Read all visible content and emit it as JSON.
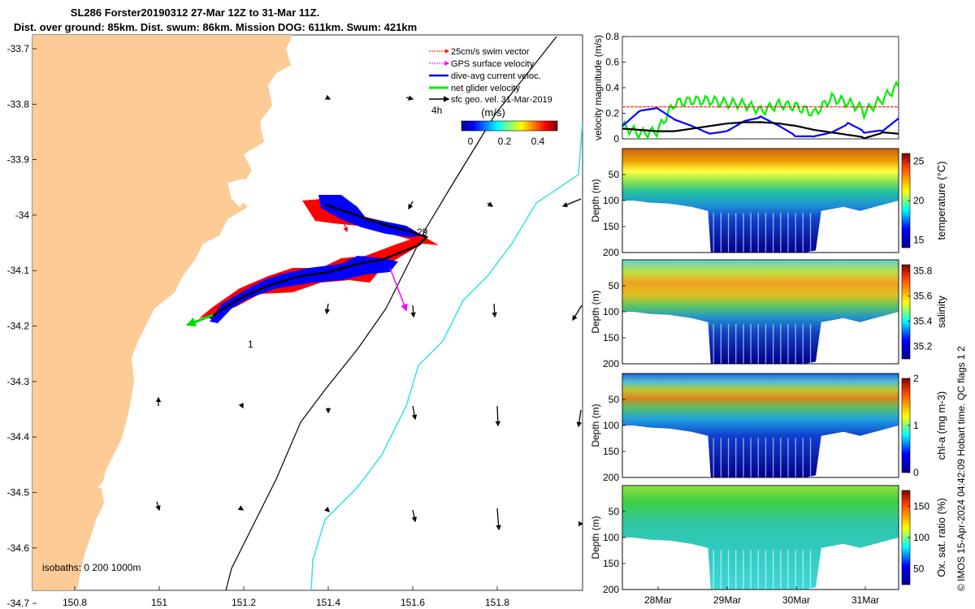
{
  "header": {
    "line1": "SL286 Forster20190312 27-Mar 12Z to 31-Mar 11Z.",
    "line2": "Dist. over ground: 85km. Dist. swum: 86km. Mission DOG: 611km. Swum: 421km"
  },
  "map": {
    "lat_ticks": [
      "-33.7",
      "-33.8",
      "-33.9",
      "-34",
      "-34.1",
      "-34.2",
      "-34.3",
      "-34.4",
      "-34.5",
      "-34.6",
      "-34.7"
    ],
    "lon_ticks": [
      "150.8",
      "151",
      "151.2",
      "151.4",
      "151.6",
      "151.8"
    ],
    "legend": [
      {
        "label": "25cm/s swim vector",
        "color": "#ff0000"
      },
      {
        "label": "GPS surface velocity",
        "color": "#ff00ff"
      },
      {
        "label": "dive-avg current veloc.",
        "color": "#0000ff"
      },
      {
        "label": "net glider velocity",
        "color": "#00ee00"
      },
      {
        "label": "sfc geo. vel. 31-Mar-2019",
        "color": "#000000"
      }
    ],
    "scale_label": "4h",
    "colorbar_title": "(m/s)",
    "colorbar_ticks": [
      "0",
      "0.2",
      "0.4"
    ],
    "isobaths_label": "isobaths: 0   200  1000m",
    "marker_start": "1",
    "marker_end": "29",
    "land_color": "#fdcb96",
    "isobath_200_color": "#000000",
    "isobath_1000_color": "#34e3e3"
  },
  "chart_data": [
    {
      "type": "line",
      "title": "",
      "ylabel": "velocity magnitude (m/s)",
      "ylim": [
        0,
        0.8
      ],
      "yticks": [
        "0",
        "0.2",
        "0.4",
        "0.6",
        "0.8"
      ],
      "x_days": [
        0,
        0.25,
        0.5,
        0.75,
        1,
        1.25,
        1.5,
        1.75,
        2,
        2.25,
        2.5,
        2.75,
        3,
        3.25,
        3.5,
        3.75,
        3.96
      ],
      "series": [
        {
          "name": "net glider velocity",
          "color": "#00ee00",
          "values": [
            0.1,
            0.04,
            0.06,
            0.28,
            0.3,
            0.3,
            0.28,
            0.27,
            0.22,
            0.27,
            0.25,
            0.2,
            0.32,
            0.28,
            0.22,
            0.32,
            0.42
          ]
        },
        {
          "name": "dive-avg current veloc.",
          "color": "#0000ff",
          "values": [
            0.1,
            0.22,
            0.24,
            0.15,
            0.1,
            0.04,
            0.06,
            0.14,
            0.17,
            0.1,
            0.02,
            0.02,
            0.05,
            0.12,
            0.05,
            0.07,
            0.16
          ]
        },
        {
          "name": "sfc geo. vel.",
          "color": "#000000",
          "values": [
            0.08,
            0.07,
            0.06,
            0.06,
            0.08,
            0.1,
            0.12,
            0.13,
            0.13,
            0.12,
            0.1,
            0.07,
            0.05,
            0.03,
            0.01,
            0.05,
            0.04
          ]
        },
        {
          "name": "25cm/s swim reference",
          "color": "#ff0000",
          "values": [
            0.25,
            0.25,
            0.25,
            0.25,
            0.25,
            0.25,
            0.25,
            0.25,
            0.25,
            0.25,
            0.25,
            0.25,
            0.25,
            0.25,
            0.25,
            0.25,
            0.25
          ]
        }
      ]
    },
    {
      "type": "heatmap",
      "variable": "temperature",
      "ylabel": "Depth (m)",
      "colorbar_label": "temperature (°C)",
      "depth_range": [
        0,
        200
      ],
      "yticks": [
        "50",
        "100",
        "150",
        "200"
      ],
      "cbar_ticks": [
        "15",
        "20",
        "25"
      ],
      "clim": [
        14,
        26
      ],
      "surface_value": 25,
      "bottom_value": 14
    },
    {
      "type": "heatmap",
      "variable": "salinity",
      "ylabel": "Depth (m)",
      "colorbar_label": "salinity",
      "depth_range": [
        0,
        200
      ],
      "yticks": [
        "50",
        "100",
        "150",
        "200"
      ],
      "cbar_ticks": [
        "35.2",
        "35.4",
        "35.6",
        "35.8"
      ],
      "clim": [
        35.1,
        35.85
      ],
      "surface_value": 35.45,
      "max_value": 35.7,
      "bottom_value": 35.15
    },
    {
      "type": "heatmap",
      "variable": "chl-a",
      "ylabel": "Depth (m)",
      "colorbar_label": "chl-a (mg m-3)",
      "depth_range": [
        0,
        200
      ],
      "yticks": [
        "50",
        "100",
        "150",
        "200"
      ],
      "cbar_ticks": [
        "0",
        "1",
        "2"
      ],
      "clim": [
        0,
        2
      ],
      "max_value": 1.9,
      "bottom_value": 0
    },
    {
      "type": "heatmap",
      "variable": "Ox. sat. ratio",
      "ylabel": "Depth (m)",
      "colorbar_label": "Ox. sat. ratio (%)",
      "depth_range": [
        0,
        200
      ],
      "yticks": [
        "50",
        "100",
        "150",
        "200"
      ],
      "cbar_ticks": [
        "50",
        "100",
        "150"
      ],
      "clim": [
        25,
        175
      ],
      "surface_value": 110,
      "bottom_value": 80
    }
  ],
  "time_axis": {
    "ticks": [
      "28Mar",
      "29Mar",
      "30Mar",
      "31Mar"
    ]
  },
  "footer": "© IMOS 15-Apr-2024 04:42:09 Hobart time. QC flags 1  2"
}
